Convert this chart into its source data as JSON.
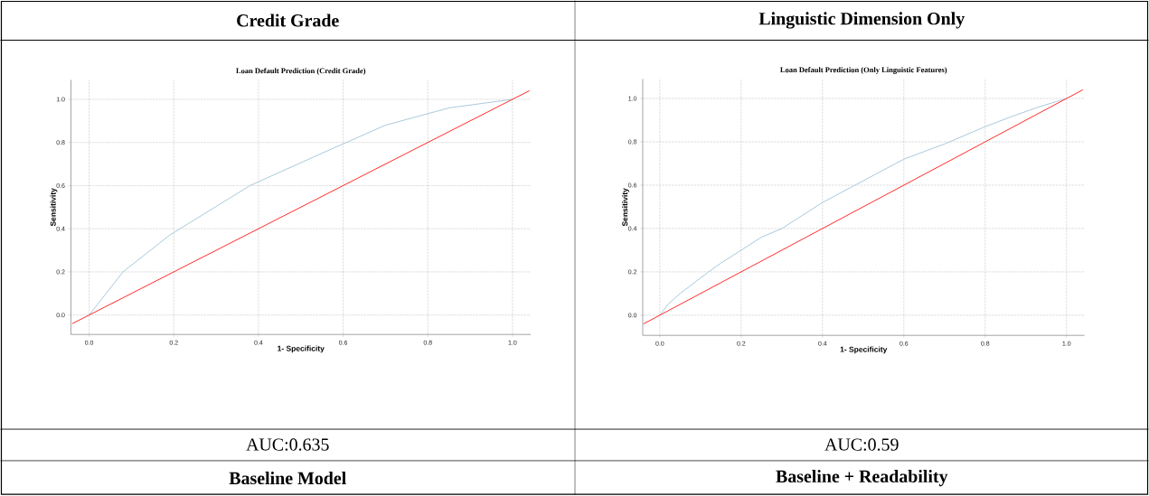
{
  "chart_data": [
    {
      "type": "line",
      "title": "Loan Default Prediction (Credit Grade)",
      "xlabel": "1- Specificity",
      "ylabel": "Sensitivity",
      "annotations": [
        "Credit Grade",
        "AUC:0.635",
        "Baseline Model"
      ],
      "xlim": [
        -0.043,
        1.043
      ],
      "ylim": [
        -0.09,
        1.09
      ],
      "xticks": [
        {
          "value": 0,
          "label": "0.0"
        },
        {
          "value": 0.2,
          "label": "0.2"
        },
        {
          "value": 0.4,
          "label": "0.4"
        },
        {
          "value": 0.6,
          "label": "0.6"
        },
        {
          "value": 0.8,
          "label": "0.8"
        },
        {
          "value": 1,
          "label": "1.0"
        }
      ],
      "yticks": [
        {
          "value": 0,
          "label": "0.0"
        },
        {
          "value": 0.2,
          "label": "0.2"
        },
        {
          "value": 0.4,
          "label": "0.4"
        },
        {
          "value": 0.6,
          "label": "0.6"
        },
        {
          "value": 0.8,
          "label": "0.8"
        },
        {
          "value": 1,
          "label": "1.0"
        }
      ],
      "grid": true,
      "series": [
        {
          "color": "#a9c9da",
          "x": [
            0,
            0.08,
            0.19,
            0.38,
            0.55,
            0.7,
            0.85,
            1
          ],
          "values": [
            0,
            0.2,
            0.37,
            0.6,
            0.75,
            0.88,
            0.96,
            1
          ]
        },
        {
          "color": "#ff2a2a",
          "x": [
            -0.04,
            1.04
          ],
          "values": [
            -0.04,
            1.04
          ]
        }
      ]
    },
    {
      "type": "line",
      "title": "Loan Default Prediction (Only Linguistic Features)",
      "xlabel": "1- Specificity",
      "ylabel": "Sensitivity",
      "annotations": [
        "Linguistic Dimension Only",
        "AUC:0.59",
        "Baseline + Readability"
      ],
      "xlim": [
        -0.042,
        1.044
      ],
      "ylim": [
        -0.093,
        1.09
      ],
      "xticks": [
        {
          "value": 0,
          "label": "0.0"
        },
        {
          "value": 0.2,
          "label": "0.2"
        },
        {
          "value": 0.4,
          "label": "0.4"
        },
        {
          "value": 0.6,
          "label": "0.6"
        },
        {
          "value": 0.8,
          "label": "0.8"
        },
        {
          "value": 1,
          "label": "1.0"
        }
      ],
      "yticks": [
        {
          "value": 0,
          "label": "0.0"
        },
        {
          "value": 0.2,
          "label": "0.2"
        },
        {
          "value": 0.4,
          "label": "0.4"
        },
        {
          "value": 0.6,
          "label": "0.6"
        },
        {
          "value": 0.8,
          "label": "0.8"
        },
        {
          "value": 1,
          "label": "1.0"
        }
      ],
      "grid": true,
      "series": [
        {
          "color": "#a9c9da",
          "x": [
            0,
            0.02,
            0.05,
            0.12,
            0.15,
            0.2,
            0.25,
            0.3,
            0.35,
            0.4,
            0.47,
            0.53,
            0.6,
            0.7,
            0.8,
            0.87,
            0.93,
            1
          ],
          "values": [
            0,
            0.05,
            0.1,
            0.2,
            0.24,
            0.3,
            0.36,
            0.4,
            0.46,
            0.52,
            0.59,
            0.65,
            0.72,
            0.79,
            0.87,
            0.92,
            0.96,
            1
          ]
        },
        {
          "color": "#ff2a2a",
          "x": [
            -0.04,
            1.04
          ],
          "values": [
            -0.04,
            1.04
          ]
        }
      ]
    }
  ]
}
